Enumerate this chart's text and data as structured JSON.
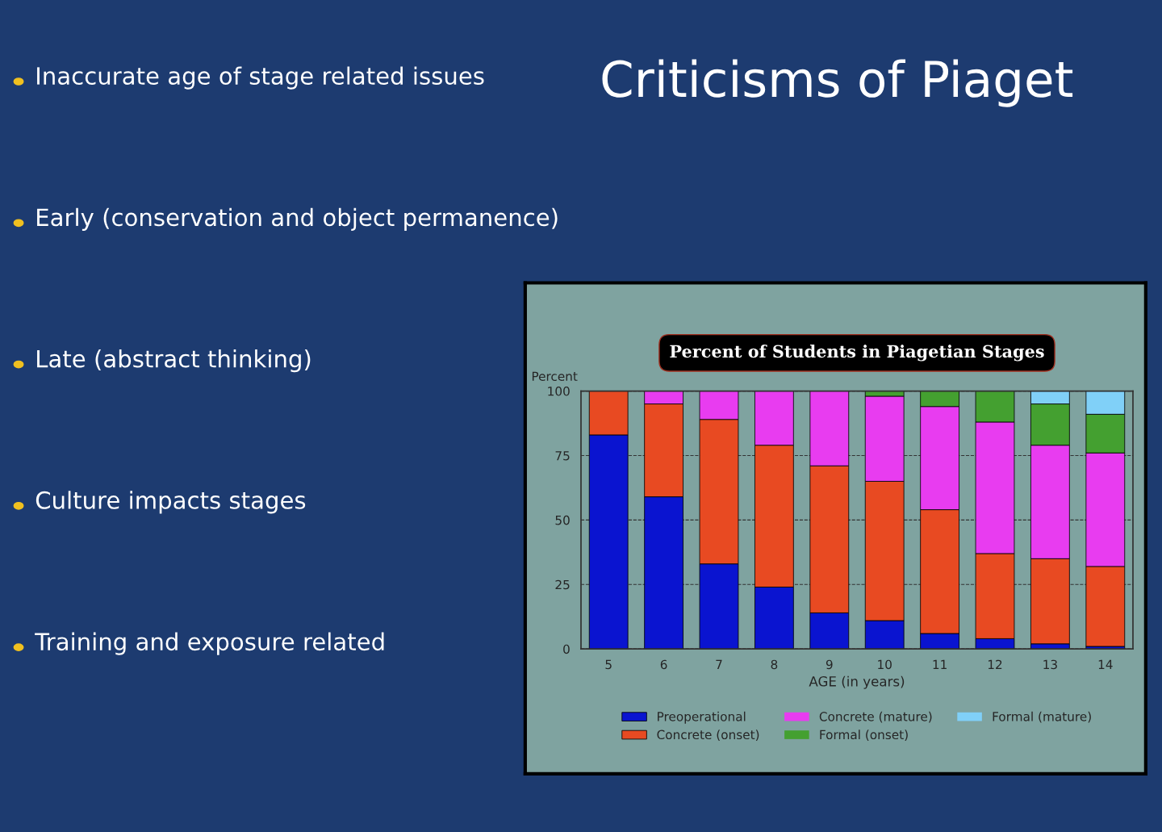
{
  "chart_data": {
    "type": "bar",
    "title": "Percent of Students in Piagetian Stages",
    "xlabel": "AGE (in years)",
    "ylabel": "Percent",
    "categories": [
      "5",
      "6",
      "7",
      "8",
      "9",
      "10",
      "11",
      "12",
      "13",
      "14"
    ],
    "stacked": true,
    "series": [
      {
        "name": "Preoperational",
        "color": "#0a14d0",
        "values": [
          83,
          59,
          33,
          24,
          14,
          11,
          6,
          4,
          2,
          1
        ]
      },
      {
        "name": "Concrete (onset)",
        "color": "#e84a22",
        "values": [
          17,
          36,
          56,
          55,
          57,
          54,
          48,
          33,
          33,
          31
        ]
      },
      {
        "name": "Concrete (mature)",
        "color": "#e83cf0",
        "values": [
          0,
          5,
          11,
          21,
          29,
          33,
          40,
          51,
          44,
          44
        ]
      },
      {
        "name": "Formal (onset)",
        "color": "#44a030",
        "values": [
          0,
          0,
          0,
          0,
          0,
          2,
          6,
          12,
          16,
          15
        ]
      },
      {
        "name": "Formal (mature)",
        "color": "#80d0f8",
        "values": [
          0,
          0,
          0,
          0,
          0,
          0,
          0,
          0,
          5,
          9
        ]
      }
    ],
    "ylim": [
      0,
      100
    ],
    "yticks": [
      0,
      25,
      50,
      75,
      100
    ],
    "grid": "y",
    "legend": "bottom",
    "annotations": [
      "Criticisms of Piaget",
      "Inaccurate age of stage related issues",
      "Early (conservation and object permanence)",
      "Late (abstract thinking)",
      "Culture impacts stages",
      "Training and exposure related"
    ]
  }
}
